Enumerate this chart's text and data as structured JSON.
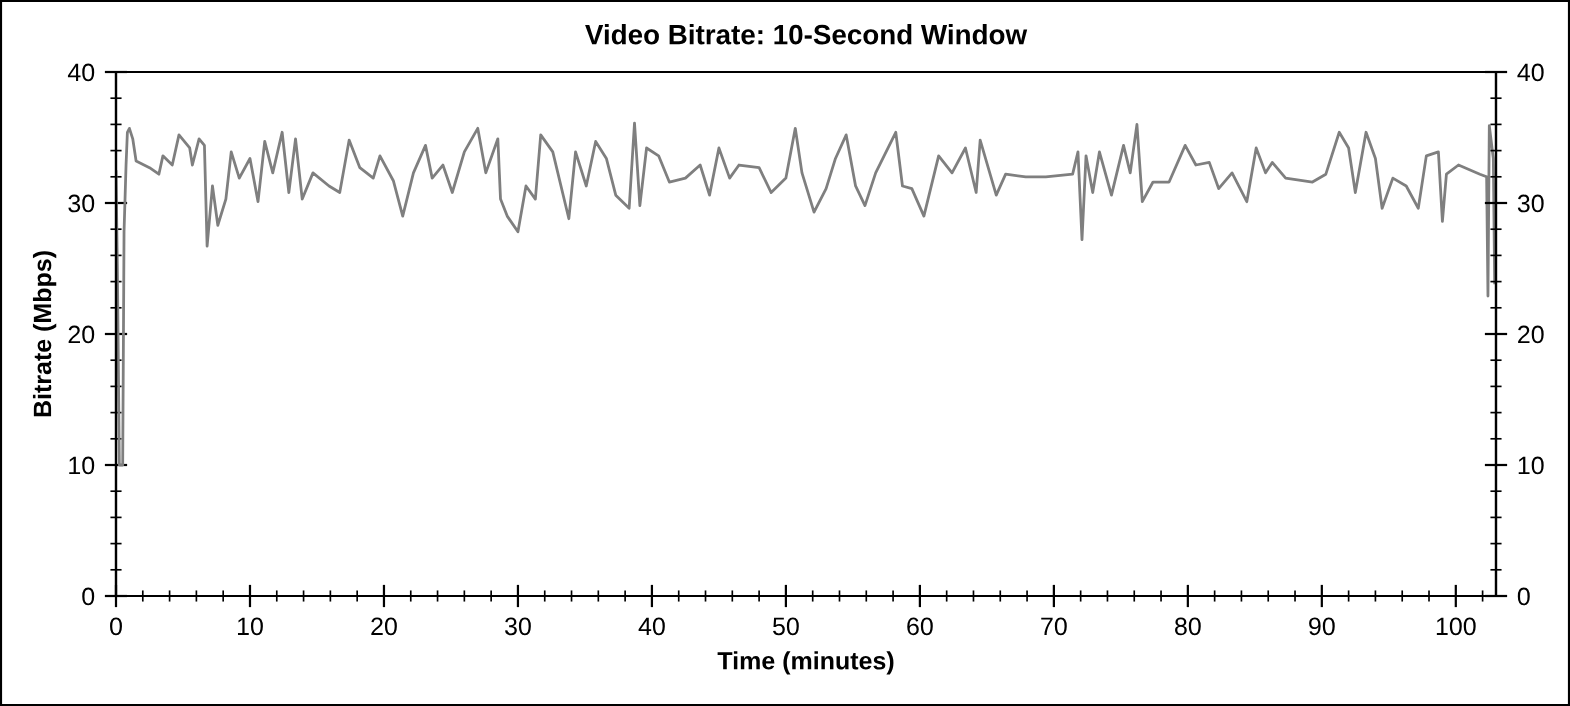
{
  "chart_data": {
    "type": "line",
    "title": "Video Bitrate: 10-Second Window",
    "xlabel": "Time (minutes)",
    "ylabel": "Bitrate (Mbps)",
    "x": [
      0,
      0.1,
      0.25,
      0.5,
      0.6,
      0.75,
      0.85,
      1.0,
      1.25,
      1.5,
      2.5,
      3.2,
      3.5,
      4.2,
      4.7,
      5.5,
      5.7,
      6.2,
      6.6,
      6.8,
      7.2,
      7.6,
      8.2,
      8.6,
      9.2,
      10.0,
      10.6,
      11.1,
      11.7,
      12.4,
      12.9,
      13.4,
      13.9,
      14.7,
      15.9,
      16.7,
      17.4,
      18.2,
      19.2,
      19.7,
      20.7,
      21.4,
      22.2,
      23.1,
      23.6,
      24.4,
      25.1,
      26.0,
      27.0,
      27.6,
      28.5,
      28.7,
      29.2,
      30.0,
      30.6,
      31.3,
      31.7,
      32.6,
      33.8,
      34.3,
      35.1,
      35.8,
      36.6,
      37.3,
      38.3,
      38.7,
      39.1,
      39.6,
      40.5,
      41.3,
      42.5,
      43.6,
      44.3,
      45.0,
      45.8,
      46.5,
      48.0,
      48.9,
      50.0,
      50.7,
      51.2,
      52.1,
      53.0,
      53.7,
      54.5,
      55.2,
      55.9,
      56.7,
      58.2,
      58.7,
      59.4,
      60.3,
      61.4,
      62.4,
      63.4,
      64.2,
      64.5,
      65.7,
      66.4,
      67.9,
      69.4,
      71.4,
      71.8,
      72.1,
      72.4,
      72.9,
      73.4,
      74.3,
      75.2,
      75.7,
      76.2,
      76.6,
      77.4,
      78.6,
      79.8,
      80.6,
      81.6,
      82.3,
      83.3,
      84.4,
      85.1,
      85.8,
      86.3,
      87.3,
      89.3,
      90.3,
      91.3,
      92.0,
      92.5,
      93.3,
      94.0,
      94.5,
      95.3,
      96.3,
      97.2,
      97.8,
      98.7,
      99.0,
      99.3,
      100.2,
      101.8,
      102.3,
      102.4,
      102.5,
      102.8,
      102.9
    ],
    "series": [
      {
        "color": "#7f7f7f",
        "values": [
          32.4,
          25.3,
          10.0,
          10.0,
          27.8,
          32.9,
          35.4,
          35.7,
          34.9,
          33.2,
          32.7,
          32.2,
          33.6,
          32.9,
          35.2,
          34.2,
          32.9,
          34.9,
          34.4,
          26.7,
          31.3,
          28.3,
          30.3,
          33.9,
          31.9,
          33.4,
          30.1,
          34.7,
          32.3,
          35.4,
          30.8,
          34.9,
          30.3,
          32.3,
          31.3,
          30.8,
          34.8,
          32.7,
          31.9,
          33.6,
          31.7,
          29.0,
          32.3,
          34.4,
          31.9,
          32.9,
          30.8,
          33.9,
          35.7,
          32.3,
          34.9,
          30.3,
          29.0,
          27.8,
          31.3,
          30.3,
          35.2,
          33.9,
          28.8,
          33.9,
          31.3,
          34.7,
          33.4,
          30.6,
          29.6,
          36.1,
          29.8,
          34.2,
          33.6,
          31.6,
          31.9,
          32.9,
          30.6,
          34.2,
          31.9,
          32.9,
          32.7,
          30.8,
          31.9,
          35.7,
          32.3,
          29.3,
          31.1,
          33.4,
          35.2,
          31.3,
          29.8,
          32.3,
          35.4,
          31.3,
          31.1,
          29.0,
          33.6,
          32.3,
          34.2,
          30.8,
          34.8,
          30.6,
          32.2,
          32.0,
          32.0,
          32.2,
          33.9,
          27.2,
          33.6,
          30.8,
          33.9,
          30.6,
          34.4,
          32.3,
          36.0,
          30.1,
          31.6,
          31.6,
          34.4,
          32.9,
          33.1,
          31.1,
          32.3,
          30.1,
          34.2,
          32.3,
          33.1,
          31.9,
          31.6,
          32.2,
          35.4,
          34.2,
          30.8,
          35.4,
          33.4,
          29.6,
          31.9,
          31.3,
          29.6,
          33.6,
          33.9,
          28.6,
          32.2,
          32.9,
          32.2,
          32.0,
          22.9,
          35.9,
          33.4,
          23.9
        ]
      }
    ],
    "xlim": [
      0,
      103
    ],
    "xticks": [
      0,
      10,
      20,
      30,
      40,
      50,
      60,
      70,
      80,
      90,
      100
    ],
    "ylim": [
      0,
      40
    ],
    "yticks": [
      0,
      10,
      20,
      30,
      40
    ],
    "y2lim": [
      0,
      40
    ],
    "y2ticks": [
      0,
      10,
      20,
      30,
      40
    ],
    "grid": false,
    "marker": "none",
    "line_style": "solid"
  }
}
